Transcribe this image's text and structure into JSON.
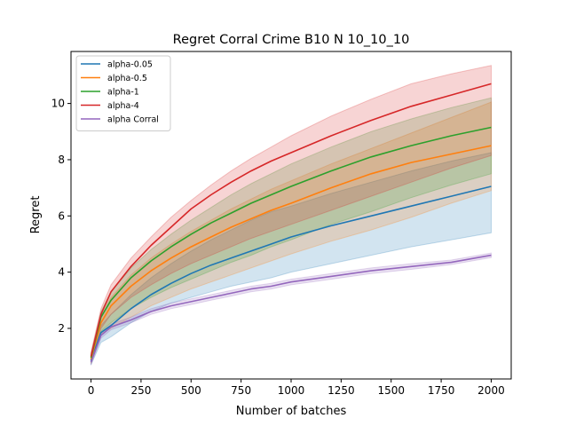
{
  "chart_data": {
    "type": "line",
    "title": "Regret Corral Crime B10 N 10_10_10",
    "xlabel": "Number of batches",
    "ylabel": "Regret",
    "xlim": [
      -100,
      2100
    ],
    "ylim": [
      0.2,
      11.85
    ],
    "xticks": [
      0,
      250,
      500,
      750,
      1000,
      1250,
      1500,
      1750,
      2000
    ],
    "xtick_labels": [
      "0",
      "250",
      "500",
      "750",
      "1000",
      "1250",
      "1500",
      "1750",
      "2000"
    ],
    "yticks": [
      2,
      4,
      6,
      8,
      10
    ],
    "ytick_labels": [
      "2",
      "4",
      "6",
      "8",
      "10"
    ],
    "legend_position": "top-left",
    "x": [
      0,
      50,
      100,
      200,
      300,
      400,
      500,
      600,
      700,
      800,
      900,
      1000,
      1200,
      1400,
      1600,
      1800,
      2000
    ],
    "series": [
      {
        "name": "alpha-0.05",
        "color": "#1f77b4",
        "values": [
          0.85,
          1.85,
          2.1,
          2.7,
          3.2,
          3.6,
          3.95,
          4.25,
          4.5,
          4.75,
          5.0,
          5.25,
          5.65,
          6.0,
          6.35,
          6.7,
          7.05
        ],
        "lower": [
          0.7,
          1.5,
          1.7,
          2.2,
          2.6,
          2.9,
          3.1,
          3.3,
          3.5,
          3.65,
          3.8,
          4.0,
          4.3,
          4.6,
          4.9,
          5.15,
          5.4
        ],
        "upper": [
          0.95,
          2.1,
          2.5,
          3.2,
          3.8,
          4.3,
          4.75,
          5.15,
          5.5,
          5.85,
          6.15,
          6.35,
          6.8,
          7.2,
          7.6,
          7.95,
          8.25
        ]
      },
      {
        "name": "alpha-0.5",
        "color": "#ff7f0e",
        "values": [
          0.9,
          2.2,
          2.8,
          3.5,
          4.05,
          4.5,
          4.9,
          5.25,
          5.6,
          5.9,
          6.2,
          6.45,
          7.0,
          7.5,
          7.9,
          8.2,
          8.5
        ],
        "lower": [
          0.75,
          1.8,
          2.0,
          2.4,
          2.8,
          3.1,
          3.4,
          3.65,
          3.9,
          4.15,
          4.4,
          4.65,
          5.1,
          5.5,
          5.95,
          6.45,
          6.9
        ],
        "upper": [
          1.05,
          2.4,
          3.1,
          3.9,
          4.5,
          5.0,
          5.45,
          5.85,
          6.25,
          6.6,
          6.95,
          7.25,
          7.85,
          8.4,
          8.95,
          9.5,
          10.05
        ]
      },
      {
        "name": "alpha-1",
        "color": "#2ca02c",
        "values": [
          0.95,
          2.4,
          3.0,
          3.8,
          4.4,
          4.9,
          5.35,
          5.75,
          6.1,
          6.45,
          6.75,
          7.05,
          7.6,
          8.1,
          8.5,
          8.85,
          9.15
        ],
        "lower": [
          0.8,
          1.9,
          2.2,
          2.7,
          3.1,
          3.45,
          3.75,
          4.05,
          4.35,
          4.6,
          4.9,
          5.15,
          5.7,
          6.15,
          6.65,
          7.1,
          7.5
        ],
        "upper": [
          1.1,
          2.6,
          3.3,
          4.15,
          4.8,
          5.35,
          5.85,
          6.3,
          6.75,
          7.15,
          7.5,
          7.85,
          8.45,
          9.0,
          9.45,
          9.85,
          10.2
        ]
      },
      {
        "name": "alpha-4",
        "color": "#d62728",
        "values": [
          1.0,
          2.5,
          3.3,
          4.2,
          4.95,
          5.6,
          6.25,
          6.75,
          7.2,
          7.6,
          7.95,
          8.25,
          8.85,
          9.4,
          9.9,
          10.3,
          10.7
        ],
        "lower": [
          0.85,
          2.0,
          2.5,
          3.1,
          3.55,
          3.95,
          4.3,
          4.6,
          4.9,
          5.2,
          5.45,
          5.7,
          6.2,
          6.7,
          7.2,
          7.7,
          8.15
        ],
        "upper": [
          1.15,
          2.7,
          3.55,
          4.5,
          5.25,
          5.95,
          6.55,
          7.1,
          7.6,
          8.05,
          8.45,
          8.85,
          9.55,
          10.15,
          10.7,
          11.05,
          11.35
        ]
      },
      {
        "name": "alpha Corral",
        "color": "#9467bd",
        "values": [
          0.8,
          1.75,
          2.05,
          2.3,
          2.6,
          2.8,
          2.95,
          3.1,
          3.25,
          3.4,
          3.5,
          3.65,
          3.85,
          4.05,
          4.2,
          4.35,
          4.6
        ],
        "lower": [
          0.7,
          1.65,
          1.95,
          2.2,
          2.5,
          2.7,
          2.85,
          3.0,
          3.15,
          3.3,
          3.4,
          3.55,
          3.75,
          3.95,
          4.1,
          4.27,
          4.52
        ],
        "upper": [
          0.9,
          1.85,
          2.15,
          2.4,
          2.7,
          2.9,
          3.05,
          3.2,
          3.35,
          3.5,
          3.6,
          3.75,
          3.95,
          4.15,
          4.3,
          4.43,
          4.68
        ]
      }
    ]
  }
}
